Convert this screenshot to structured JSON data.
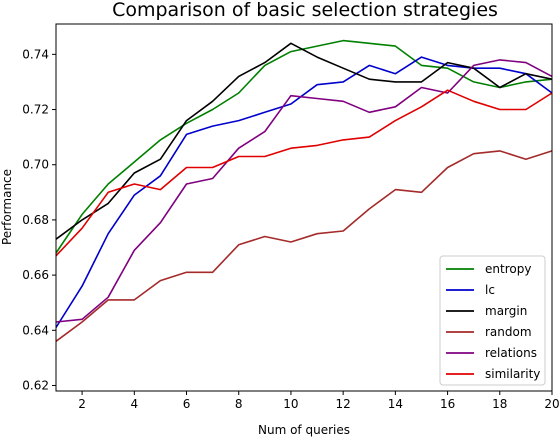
{
  "chart_data": {
    "type": "line",
    "title": "Comparison of basic selection strategies",
    "xlabel": "Num of queries",
    "ylabel": "Performance",
    "xlim": [
      1,
      20
    ],
    "ylim": [
      0.618,
      0.751
    ],
    "xticks": [
      2,
      4,
      6,
      8,
      10,
      12,
      14,
      16,
      18,
      20
    ],
    "yticks": [
      0.62,
      0.64,
      0.66,
      0.68,
      0.7,
      0.72,
      0.74
    ],
    "ytick_labels": [
      "0.62",
      "0.64",
      "0.66",
      "0.68",
      "0.70",
      "0.72",
      "0.74"
    ],
    "grid": false,
    "legend_position": "lower-right",
    "x": [
      1,
      2,
      3,
      4,
      5,
      6,
      7,
      8,
      9,
      10,
      11,
      12,
      13,
      14,
      15,
      16,
      17,
      18,
      19,
      20
    ],
    "series": [
      {
        "name": "entropy",
        "color": "#008000",
        "values": [
          0.668,
          0.682,
          0.693,
          0.701,
          0.709,
          0.715,
          0.72,
          0.726,
          0.736,
          0.741,
          0.743,
          0.745,
          0.744,
          0.743,
          0.736,
          0.735,
          0.73,
          0.728,
          0.73,
          0.731
        ]
      },
      {
        "name": "lc",
        "color": "#0000cc",
        "values": [
          0.641,
          0.656,
          0.675,
          0.689,
          0.696,
          0.711,
          0.714,
          0.716,
          0.719,
          0.722,
          0.729,
          0.73,
          0.736,
          0.733,
          0.739,
          0.736,
          0.735,
          0.735,
          0.733,
          0.726
        ]
      },
      {
        "name": "margin",
        "color": "#000000",
        "values": [
          0.673,
          0.68,
          0.686,
          0.697,
          0.702,
          0.716,
          0.723,
          0.732,
          0.737,
          0.744,
          0.739,
          0.735,
          0.731,
          0.73,
          0.73,
          0.737,
          0.735,
          0.728,
          0.733,
          0.731
        ]
      },
      {
        "name": "random",
        "color": "#a52a2a",
        "values": [
          0.636,
          0.643,
          0.651,
          0.651,
          0.658,
          0.661,
          0.661,
          0.671,
          0.674,
          0.672,
          0.675,
          0.676,
          0.684,
          0.691,
          0.69,
          0.699,
          0.704,
          0.705,
          0.702,
          0.705
        ]
      },
      {
        "name": "relations",
        "color": "#800080",
        "values": [
          0.643,
          0.644,
          0.652,
          0.669,
          0.679,
          0.693,
          0.695,
          0.706,
          0.712,
          0.725,
          0.724,
          0.723,
          0.719,
          0.721,
          0.728,
          0.726,
          0.736,
          0.738,
          0.737,
          0.732
        ]
      },
      {
        "name": "similarity",
        "color": "#e00000",
        "values": [
          0.667,
          0.677,
          0.69,
          0.693,
          0.691,
          0.699,
          0.699,
          0.703,
          0.703,
          0.706,
          0.707,
          0.709,
          0.71,
          0.716,
          0.721,
          0.727,
          0.723,
          0.72,
          0.72,
          0.726
        ]
      }
    ]
  }
}
